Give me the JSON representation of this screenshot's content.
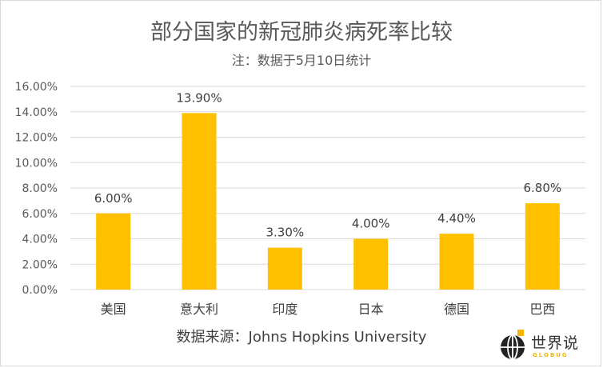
{
  "chart_data": {
    "type": "bar",
    "title": "部分国家的新冠肺炎病死率比较",
    "subtitle": "注：数据于5月10日统计",
    "source": "数据来源：Johns Hopkins University",
    "categories": [
      "美国",
      "意大利",
      "印度",
      "日本",
      "德国",
      "巴西"
    ],
    "values": [
      6.0,
      13.9,
      3.3,
      4.0,
      4.4,
      6.8
    ],
    "value_labels": [
      "6.00%",
      "13.90%",
      "3.30%",
      "4.00%",
      "4.40%",
      "6.80%"
    ],
    "yticks": [
      "0.00%",
      "2.00%",
      "4.00%",
      "6.00%",
      "8.00%",
      "10.00%",
      "12.00%",
      "14.00%",
      "16.00%"
    ],
    "ylim": [
      0,
      16
    ],
    "grid": true,
    "bar_color": "#FFC000"
  },
  "logo": {
    "name": "世界说",
    "sub": "GLOBUG"
  },
  "colors": {
    "grid": "#d9d9d9",
    "text": "#595959",
    "logo_accent": "#f2b705"
  }
}
